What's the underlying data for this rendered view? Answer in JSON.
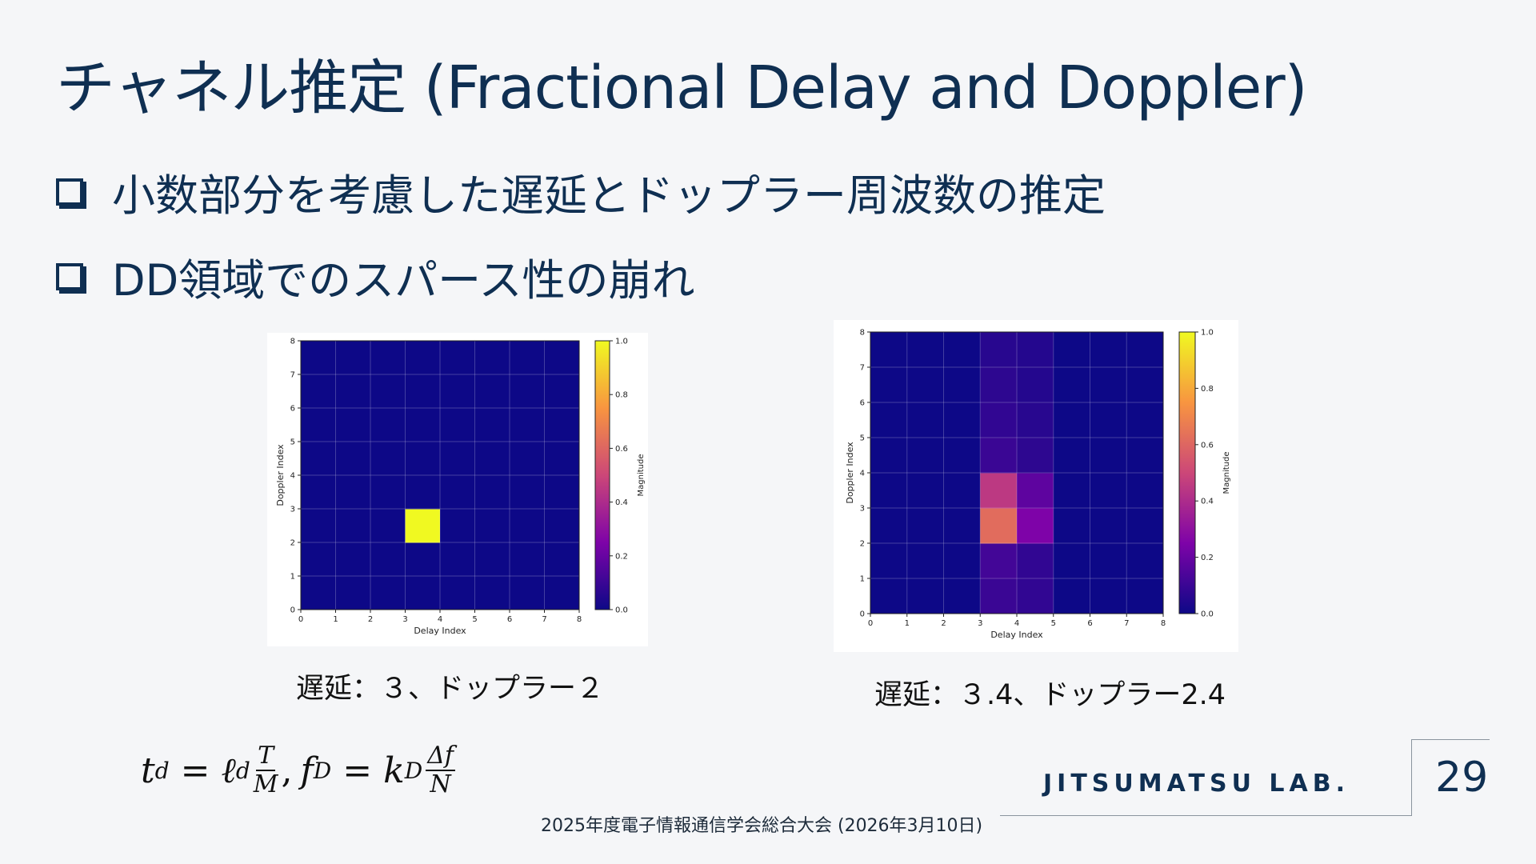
{
  "slide": {
    "title": "チャネル推定 (Fractional Delay and Doppler)",
    "bullets": [
      "小数部分を考慮した遅延とドップラー周波数の推定",
      "DD領域でのスパース性の崩れ"
    ],
    "captions": [
      "遅延：３、ドップラー２",
      "遅延：３.4、ドップラー2.4"
    ],
    "formula": {
      "t": "t",
      "d": "d",
      "eq": "=",
      "ell": "ℓ",
      "T": "T",
      "M": "M",
      "comma": ",",
      "f": "f",
      "D": "D",
      "k": "k",
      "df": "Δf",
      "N": "N"
    },
    "footer": "2025年度電子情報通信学会総合大会 (2026年3月10日)",
    "lab": "JITSUMATSU LAB.",
    "page_number": "29"
  },
  "chart_data": [
    {
      "type": "heatmap",
      "xlabel": "Delay Index",
      "ylabel": "Doppler Index",
      "colorbar_label": "Magnitude",
      "x_ticks": [
        "0",
        "1",
        "2",
        "3",
        "4",
        "5",
        "6",
        "7",
        "8"
      ],
      "y_ticks": [
        "0",
        "1",
        "2",
        "3",
        "4",
        "5",
        "6",
        "7",
        "8"
      ],
      "colorbar_ticks": [
        "0.0",
        "0.2",
        "0.4",
        "0.6",
        "0.8",
        "1.0"
      ],
      "xlim": [
        0,
        8
      ],
      "ylim": [
        0,
        8
      ],
      "clim": [
        0,
        1
      ],
      "colormap": "plasma",
      "grid": true,
      "nonzero_cells": [
        {
          "x": 3,
          "y": 2,
          "value": 1.0
        }
      ]
    },
    {
      "type": "heatmap",
      "xlabel": "Delay Index",
      "ylabel": "Doppler Index",
      "colorbar_label": "Magnitude",
      "x_ticks": [
        "0",
        "1",
        "2",
        "3",
        "4",
        "5",
        "6",
        "7",
        "8"
      ],
      "y_ticks": [
        "0",
        "1",
        "2",
        "3",
        "4",
        "5",
        "6",
        "7",
        "8"
      ],
      "colorbar_ticks": [
        "0.0",
        "0.2",
        "0.4",
        "0.6",
        "0.8",
        "1.0"
      ],
      "xlim": [
        0,
        8
      ],
      "ylim": [
        0,
        8
      ],
      "clim": [
        0,
        1
      ],
      "colormap": "plasma",
      "grid": true,
      "nonzero_cells": [
        {
          "x": 3,
          "y": 0,
          "value": 0.1
        },
        {
          "x": 4,
          "y": 0,
          "value": 0.08
        },
        {
          "x": 3,
          "y": 1,
          "value": 0.12
        },
        {
          "x": 4,
          "y": 1,
          "value": 0.08
        },
        {
          "x": 3,
          "y": 2,
          "value": 0.62
        },
        {
          "x": 4,
          "y": 2,
          "value": 0.25
        },
        {
          "x": 3,
          "y": 3,
          "value": 0.45
        },
        {
          "x": 4,
          "y": 3,
          "value": 0.18
        },
        {
          "x": 3,
          "y": 4,
          "value": 0.1
        },
        {
          "x": 4,
          "y": 4,
          "value": 0.07
        },
        {
          "x": 3,
          "y": 5,
          "value": 0.08
        },
        {
          "x": 4,
          "y": 5,
          "value": 0.06
        },
        {
          "x": 3,
          "y": 6,
          "value": 0.07
        },
        {
          "x": 4,
          "y": 6,
          "value": 0.05
        },
        {
          "x": 3,
          "y": 7,
          "value": 0.06
        },
        {
          "x": 4,
          "y": 7,
          "value": 0.05
        }
      ]
    }
  ]
}
